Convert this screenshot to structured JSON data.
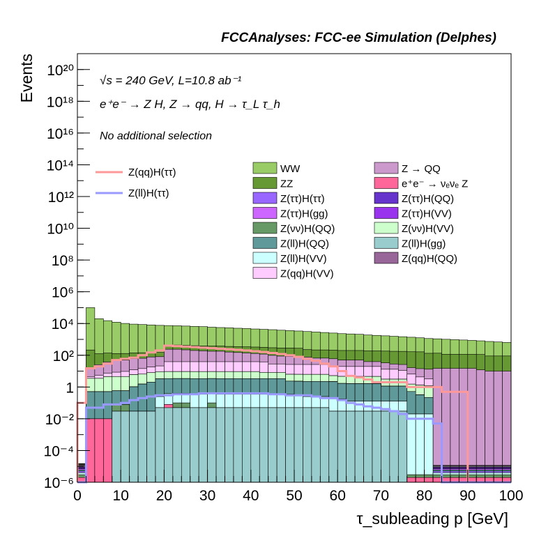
{
  "header": {
    "title": "FCCAnalyses: FCC-ee Simulation (Delphes)",
    "energy_line": "√s = 240 GeV, L=10.8 ab⁻¹",
    "process_line": "e⁺e⁻ → Z H, Z → qq, H → τ_L τ_h",
    "selection_line": "No additional selection"
  },
  "chart_data": {
    "type": "bar",
    "stacked": true,
    "log_y": true,
    "xlabel": "τ_subleading p [GeV]",
    "ylabel": "Events",
    "xlim": [
      0,
      100
    ],
    "ylim": [
      1e-06,
      1e+21
    ],
    "x_ticks": [
      0,
      10,
      20,
      30,
      40,
      50,
      60,
      70,
      80,
      90,
      100
    ],
    "y_ticks": [
      {
        "value": 1e-06,
        "label": "10⁻⁶"
      },
      {
        "value": 0.0001,
        "label": "10⁻⁴"
      },
      {
        "value": 0.01,
        "label": "10⁻²"
      },
      {
        "value": 1,
        "label": "1"
      },
      {
        "value": 100,
        "label": "10²"
      },
      {
        "value": 10000,
        "label": "10⁴"
      },
      {
        "value": 1000000,
        "label": "10⁶"
      },
      {
        "value": 100000000,
        "label": "10⁸"
      },
      {
        "value": 10000000000,
        "label": "10¹⁰"
      },
      {
        "value": 1000000000000,
        "label": "10¹²"
      },
      {
        "value": 100000000000000,
        "label": "10¹⁴"
      },
      {
        "value": 10000000000000000,
        "label": "10¹⁶"
      },
      {
        "value": 1000000000000000000,
        "label": "10¹⁸"
      },
      {
        "value": 100000000000000000000,
        "label": "10²⁰"
      }
    ],
    "bin_edges_step": 2,
    "stack_series": [
      {
        "name": "Z(ll)H(gg)",
        "color": "#99cccc",
        "values": [
          1e-06,
          1e-06,
          1e-06,
          1e-06,
          0.03,
          0.03,
          0.03,
          0.03,
          0.03,
          0.05,
          0.05,
          0.05,
          0.05,
          0.05,
          0.05,
          0.05,
          0.05,
          0.05,
          0.05,
          0.05,
          0.05,
          0.05,
          0.05,
          0.05,
          0.05,
          0.05,
          0.05,
          0.05,
          0.05,
          0.03,
          0.03,
          0.03,
          0.03,
          0.03,
          0.03,
          0.03,
          0.03,
          0.03,
          1e-06,
          1e-06,
          1e-06,
          1e-06,
          1e-06,
          1e-06,
          1e-06,
          1e-06,
          1e-06,
          1e-06,
          1e-06,
          1e-06
        ]
      },
      {
        "name": "e⁺e⁻ → νₑνₑ Z",
        "color": "#ff6699",
        "values": [
          1e-06,
          0.01,
          0.01,
          0.01,
          1e-06,
          1e-06,
          1e-06,
          1e-06,
          1e-06,
          1e-06,
          0.03,
          1e-06,
          1e-06,
          1e-06,
          1e-06,
          1e-06,
          1e-06,
          1e-06,
          1e-06,
          1e-06,
          1e-06,
          1e-06,
          1e-06,
          1e-06,
          1e-06,
          1e-06,
          1e-06,
          1e-06,
          1e-06,
          1e-06,
          1e-06,
          1e-06,
          1e-06,
          1e-06,
          1e-06,
          1e-06,
          1e-06,
          1e-06,
          1e-06,
          1e-06,
          1e-06,
          1e-06,
          1e-06,
          1e-06,
          1e-06,
          1e-06,
          1e-06,
          1e-06,
          1e-06,
          1e-06
        ]
      },
      {
        "name": "Z(νν)H(QQ)",
        "color": "#669966",
        "values": [
          1e-06,
          1e-06,
          1e-06,
          1e-06,
          0.05,
          0.05,
          1e-06,
          1e-06,
          1e-06,
          1e-06,
          1e-06,
          0.05,
          0.05,
          1e-06,
          1e-06,
          0.05,
          1e-06,
          1e-06,
          1e-06,
          1e-06,
          1e-06,
          1e-06,
          1e-06,
          1e-06,
          1e-06,
          1e-06,
          1e-06,
          1e-06,
          1e-06,
          1e-06,
          1e-06,
          1e-06,
          1e-06,
          1e-06,
          1e-06,
          1e-06,
          1e-06,
          1e-06,
          1e-06,
          1e-06,
          1e-06,
          1e-06,
          1e-06,
          1e-06,
          1e-06,
          1e-06,
          1e-06,
          1e-06,
          1e-06,
          1e-06
        ]
      },
      {
        "name": "Z(ll)H(VV)",
        "color": "#ccffff",
        "values": [
          1e-06,
          1e-06,
          1e-06,
          1e-06,
          1e-06,
          1e-06,
          1e-06,
          1e-06,
          1e-06,
          0.2,
          0.3,
          0.3,
          0.3,
          0.3,
          0.3,
          0.3,
          0.3,
          0.3,
          0.3,
          0.3,
          0.3,
          0.3,
          0.3,
          0.3,
          0.3,
          0.25,
          0.2,
          0.2,
          0.2,
          0.15,
          0.15,
          0.1,
          0.1,
          0.1,
          0.1,
          0.1,
          0.1,
          0.1,
          0.02,
          0.02,
          0.02,
          1e-06,
          1e-06,
          1e-06,
          1e-06,
          1e-06,
          1e-06,
          1e-06,
          1e-06,
          1e-06
        ]
      },
      {
        "name": "Z(ττ)H(ττ)",
        "color": "#9966ff",
        "values": [
          1e-06,
          1e-06,
          1e-06,
          1e-06,
          1e-06,
          1e-06,
          1e-06,
          1e-06,
          1e-06,
          1e-06,
          1e-06,
          1e-06,
          1e-06,
          1e-06,
          1e-06,
          1e-06,
          1e-06,
          1e-06,
          1e-06,
          1e-06,
          1e-06,
          1e-06,
          1e-06,
          1e-06,
          1e-06,
          1e-06,
          1e-06,
          1e-06,
          1e-06,
          1e-06,
          1e-06,
          1e-06,
          1e-06,
          1e-06,
          1e-06,
          1e-06,
          1e-06,
          1e-06,
          5e-06,
          1e-05,
          1e-05,
          1e-06,
          1e-06,
          1e-06,
          1e-06,
          1e-06,
          1e-06,
          1e-06,
          1e-06,
          1e-06
        ]
      },
      {
        "name": "Z(ll)H(QQ)",
        "color": "#5f9999",
        "values": [
          1e-06,
          0.5,
          0.5,
          0.5,
          0.5,
          0.5,
          1,
          1.5,
          2,
          3,
          3,
          3,
          3,
          3,
          3,
          3,
          3,
          3,
          3,
          3,
          3,
          3,
          3,
          3,
          2,
          2,
          2,
          2,
          2,
          2,
          1.5,
          1.5,
          1.5,
          1.5,
          1.5,
          1,
          1,
          1,
          0.5,
          0.3,
          0.2,
          1e-06,
          1e-06,
          1e-06,
          1e-06,
          1e-06,
          1e-06,
          1e-06,
          1e-06,
          1e-06
        ]
      },
      {
        "name": "Z(ττ)H(gg)",
        "color": "#cc66ff",
        "values": [
          1e-06,
          1e-06,
          1e-06,
          1e-06,
          1e-06,
          1e-06,
          1e-06,
          1e-06,
          1e-06,
          1e-06,
          1e-06,
          1e-06,
          1e-06,
          1e-06,
          1e-06,
          1e-06,
          1e-06,
          1e-06,
          1e-06,
          1e-06,
          1e-06,
          1e-06,
          1e-06,
          1e-06,
          1e-06,
          1e-06,
          1e-06,
          1e-06,
          1e-06,
          1e-06,
          1e-06,
          1e-06,
          1e-06,
          1e-06,
          1e-06,
          1e-06,
          1e-06,
          1e-06,
          1e-06,
          1e-06,
          1e-06,
          1e-06,
          1e-06,
          1e-06,
          1e-06,
          1e-06,
          1e-06,
          1e-06,
          1e-06,
          1e-06
        ]
      },
      {
        "name": "Z(ττ)H(QQ)",
        "color": "#6633cc",
        "values": [
          1e-06,
          1e-06,
          1e-06,
          1e-06,
          1e-06,
          1e-06,
          1e-06,
          1e-06,
          1e-06,
          1e-06,
          1e-06,
          1e-06,
          1e-06,
          1e-06,
          1e-06,
          1e-06,
          1e-06,
          1e-06,
          1e-06,
          1e-06,
          1e-06,
          1e-06,
          1e-06,
          1e-06,
          1e-06,
          1e-06,
          1e-06,
          1e-06,
          1e-06,
          1e-06,
          1e-06,
          1e-06,
          1e-06,
          1e-06,
          1e-06,
          1e-06,
          1e-06,
          1e-06,
          1e-06,
          1e-06,
          1e-06,
          1e-06,
          1e-06,
          1e-06,
          1e-06,
          1e-06,
          1e-06,
          1e-06,
          1e-06,
          1e-06
        ]
      },
      {
        "name": "Z(ττ)H(VV)",
        "color": "#9933ee",
        "values": [
          1e-06,
          1e-06,
          1e-06,
          1e-06,
          1e-06,
          1e-06,
          1e-06,
          1e-06,
          1e-06,
          1e-06,
          1e-06,
          1e-06,
          1e-06,
          1e-06,
          1e-06,
          1e-06,
          1e-06,
          1e-06,
          1e-06,
          1e-06,
          1e-06,
          1e-06,
          1e-06,
          1e-06,
          1e-06,
          1e-06,
          1e-06,
          1e-06,
          1e-06,
          1e-06,
          1e-06,
          1e-06,
          1e-06,
          1e-06,
          1e-06,
          1e-06,
          1e-06,
          1e-06,
          1e-06,
          1e-06,
          1e-06,
          1e-06,
          1e-06,
          1e-06,
          1e-06,
          1e-06,
          1e-06,
          1e-06,
          1e-06,
          1e-06
        ]
      },
      {
        "name": "Z(νν)H(VV)",
        "color": "#ccffcc",
        "values": [
          1e-06,
          3,
          3,
          4,
          4,
          4,
          5,
          5,
          6,
          6,
          6,
          6,
          6,
          6,
          6,
          6,
          6,
          6,
          6,
          6,
          6,
          5,
          5,
          5,
          4,
          4,
          4,
          4,
          4,
          3,
          3,
          3,
          3,
          3,
          3,
          2,
          2,
          2,
          1,
          1,
          1,
          1e-06,
          1e-06,
          1e-06,
          1e-06,
          1e-06,
          1e-06,
          1e-06,
          1e-06,
          1e-06
        ]
      },
      {
        "name": "Z(qq)H(QQ)",
        "color": "#996699",
        "values": [
          1e-06,
          1e-06,
          1e-06,
          1e-06,
          1e-06,
          1e-06,
          1e-06,
          1e-06,
          1e-06,
          1e-06,
          1e-06,
          1e-06,
          1e-06,
          1e-06,
          1e-06,
          1e-06,
          1e-06,
          1e-06,
          1e-06,
          1e-06,
          1e-06,
          1e-06,
          1e-06,
          1e-06,
          1e-06,
          1e-06,
          1e-06,
          1e-06,
          1e-06,
          1e-06,
          1e-06,
          1e-06,
          1e-06,
          1e-06,
          1e-06,
          1e-06,
          1e-06,
          1e-06,
          1e-06,
          1e-06,
          1e-06,
          1e-06,
          1e-06,
          1e-06,
          1e-06,
          1e-06,
          1e-06,
          1e-06,
          1e-06,
          1e-06
        ]
      },
      {
        "name": "Z(qq)H(VV)",
        "color": "#ffccff",
        "values": [
          1e-06,
          1,
          2,
          3,
          4,
          5,
          6,
          8,
          10,
          12,
          30,
          30,
          30,
          30,
          30,
          30,
          30,
          30,
          30,
          30,
          30,
          30,
          20,
          20,
          20,
          20,
          20,
          20,
          20,
          15,
          15,
          15,
          15,
          15,
          15,
          10,
          10,
          8,
          5,
          3,
          2,
          1e-06,
          1e-06,
          1e-06,
          1e-06,
          1e-06,
          1e-06,
          1e-06,
          1e-06,
          1e-06
        ]
      },
      {
        "name": "Z → QQ",
        "color": "#cc99cc",
        "values": [
          1e-06,
          10,
          20,
          30,
          40,
          40,
          50,
          50,
          60,
          60,
          200,
          200,
          180,
          160,
          150,
          140,
          140,
          120,
          110,
          100,
          90,
          80,
          70,
          60,
          60,
          50,
          50,
          40,
          40,
          40,
          30,
          30,
          30,
          20,
          20,
          20,
          15,
          15,
          10,
          10,
          10,
          15,
          15,
          15,
          15,
          15,
          12,
          10,
          10,
          10
        ]
      },
      {
        "name": "ZZ",
        "color": "#669933",
        "values": [
          1e-06,
          200,
          100,
          100,
          80,
          80,
          80,
          80,
          70,
          70,
          200,
          200,
          200,
          200,
          200,
          200,
          200,
          200,
          200,
          200,
          200,
          200,
          200,
          200,
          200,
          200,
          150,
          150,
          150,
          150,
          150,
          150,
          150,
          150,
          150,
          150,
          150,
          150,
          150,
          150,
          120,
          120,
          100,
          100,
          100,
          100,
          100,
          80,
          80,
          80
        ]
      },
      {
        "name": "WW",
        "color": "#99cc66",
        "values": [
          1e-06,
          100000,
          20000,
          15000,
          12000,
          10000,
          9000,
          8500,
          8000,
          7500,
          7000,
          6800,
          6500,
          6200,
          6000,
          5500,
          5200,
          5000,
          4700,
          4500,
          4200,
          4000,
          3800,
          3500,
          3300,
          3100,
          2900,
          2700,
          2500,
          2300,
          2100,
          2000,
          1900,
          1700,
          1600,
          1500,
          1400,
          1300,
          1200,
          1100,
          1000,
          950,
          900,
          850,
          800,
          750,
          700,
          650,
          600,
          550
        ]
      }
    ],
    "overlay_series": [
      {
        "name": "Z(qq)H(ττ)",
        "color": "#ff9999",
        "values": [
          0.1,
          15,
          20,
          30,
          50,
          60,
          70,
          100,
          150,
          200,
          400,
          380,
          350,
          330,
          300,
          280,
          260,
          240,
          220,
          200,
          180,
          160,
          140,
          120,
          100,
          80,
          60,
          45,
          30,
          20,
          10,
          5,
          4,
          3,
          2,
          2,
          2,
          2,
          1,
          1,
          1,
          1,
          0.5,
          0.5,
          0.5,
          1e-06,
          1e-06,
          1e-06,
          1e-06,
          1e-06
        ]
      },
      {
        "name": "Z(ll)H(ττ)",
        "color": "#9999ff",
        "values": [
          1e-06,
          0.05,
          0.05,
          0.08,
          0.08,
          0.1,
          0.15,
          0.2,
          0.25,
          0.3,
          0.3,
          0.35,
          0.35,
          0.35,
          0.4,
          0.4,
          0.4,
          0.4,
          0.4,
          0.4,
          0.4,
          0.4,
          0.35,
          0.35,
          0.3,
          0.3,
          0.3,
          0.25,
          0.2,
          0.2,
          0.15,
          0.1,
          0.08,
          0.06,
          0.05,
          0.04,
          0.03,
          0.02,
          0.01,
          0.01,
          0.01,
          0.005,
          1e-06,
          1e-06,
          1e-06,
          1e-06,
          1e-06,
          1e-06,
          1e-06,
          1e-06
        ]
      }
    ],
    "legend_overlay": [
      "Z(qq)H(ττ)",
      "Z(ll)H(ττ)"
    ],
    "legend_col1": [
      "WW",
      "ZZ",
      "Z(ττ)H(ττ)",
      "Z(ττ)H(gg)",
      "Z(νν)H(QQ)",
      "Z(ll)H(QQ)",
      "Z(ll)H(VV)",
      "Z(qq)H(VV)"
    ],
    "legend_col2": [
      "Z → QQ",
      "e⁺e⁻ → νₑνₑ Z",
      "Z(ττ)H(QQ)",
      "Z(ττ)H(VV)",
      "Z(νν)H(VV)",
      "Z(ll)H(gg)",
      "Z(qq)H(QQ)"
    ]
  }
}
